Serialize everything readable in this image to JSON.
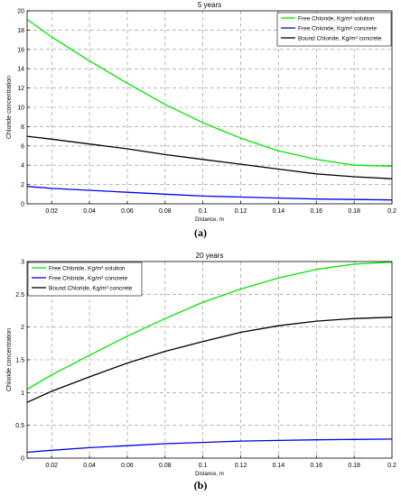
{
  "chart_data": [
    {
      "type": "line",
      "title": "5 years",
      "caption": "(a)",
      "xlabel": "Distance, m",
      "ylabel": "Chloride concentration",
      "xlim": [
        0.007,
        0.2
      ],
      "ylim": [
        0,
        20
      ],
      "xticks": [
        "0.02",
        "0.04",
        "0.06",
        "0.08",
        "0.1",
        "0.12",
        "0.14",
        "0.16",
        "0.18",
        "0.2"
      ],
      "yticks": [
        "0",
        "2",
        "4",
        "6",
        "8",
        "10",
        "12",
        "14",
        "16",
        "18",
        "20"
      ],
      "grid": true,
      "legend_position": "top-right",
      "series": [
        {
          "name": "Free Chloride, Kg/m³ solution",
          "color": "#00e600",
          "x": [
            0.007,
            0.02,
            0.04,
            0.06,
            0.08,
            0.1,
            0.12,
            0.14,
            0.16,
            0.18,
            0.2
          ],
          "y": [
            19.1,
            17.3,
            14.8,
            12.5,
            10.3,
            8.4,
            6.8,
            5.5,
            4.6,
            4.0,
            3.9
          ]
        },
        {
          "name": "Free Chloride, Kg/m³ concrete",
          "color": "#0000e6",
          "x": [
            0.007,
            0.02,
            0.04,
            0.06,
            0.08,
            0.1,
            0.12,
            0.14,
            0.16,
            0.18,
            0.2
          ],
          "y": [
            1.8,
            1.6,
            1.4,
            1.2,
            1.0,
            0.8,
            0.7,
            0.6,
            0.5,
            0.45,
            0.4
          ]
        },
        {
          "name": "Bound Chloride, Kg/m³ concrete",
          "color": "#000000",
          "x": [
            0.007,
            0.02,
            0.04,
            0.06,
            0.08,
            0.1,
            0.12,
            0.14,
            0.16,
            0.18,
            0.2
          ],
          "y": [
            7.0,
            6.7,
            6.2,
            5.7,
            5.1,
            4.6,
            4.1,
            3.6,
            3.1,
            2.8,
            2.6
          ]
        }
      ]
    },
    {
      "type": "line",
      "title": "20 years",
      "caption": "(b)",
      "xlabel": "Distance, m",
      "ylabel": "Chloride concentration",
      "xlim": [
        0.007,
        0.2
      ],
      "ylim": [
        0,
        3
      ],
      "xticks": [
        "0.02",
        "0.04",
        "0.06",
        "0.08",
        "0.1",
        "0.12",
        "0.14",
        "0.16",
        "0.18",
        "0.2"
      ],
      "yticks": [
        "0",
        "0.5",
        "1",
        "1.5",
        "2",
        "2.5",
        "3"
      ],
      "grid": true,
      "legend_position": "top-left",
      "series": [
        {
          "name": "Free Chloride, Kg/m³ solution",
          "color": "#00e600",
          "x": [
            0.007,
            0.02,
            0.04,
            0.06,
            0.08,
            0.1,
            0.12,
            0.14,
            0.16,
            0.18,
            0.2
          ],
          "y": [
            1.05,
            1.27,
            1.57,
            1.86,
            2.13,
            2.38,
            2.58,
            2.75,
            2.88,
            2.96,
            2.99
          ]
        },
        {
          "name": "Free Chloride, Kg/m³ concrete",
          "color": "#0000e6",
          "x": [
            0.007,
            0.02,
            0.04,
            0.06,
            0.08,
            0.1,
            0.12,
            0.14,
            0.16,
            0.18,
            0.2
          ],
          "y": [
            0.09,
            0.12,
            0.16,
            0.19,
            0.22,
            0.24,
            0.26,
            0.27,
            0.28,
            0.285,
            0.29
          ]
        },
        {
          "name": "Bound Chloride, Kg/m³ concrete",
          "color": "#000000",
          "x": [
            0.007,
            0.02,
            0.04,
            0.06,
            0.08,
            0.1,
            0.12,
            0.14,
            0.16,
            0.18,
            0.2
          ],
          "y": [
            0.85,
            1.02,
            1.24,
            1.45,
            1.63,
            1.78,
            1.92,
            2.02,
            2.09,
            2.13,
            2.15
          ]
        }
      ]
    }
  ]
}
